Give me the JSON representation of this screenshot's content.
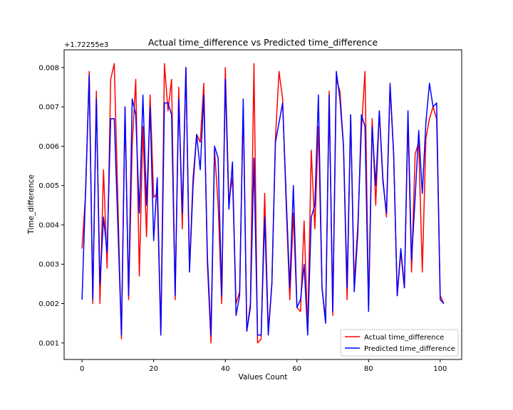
{
  "chart_data": {
    "type": "line",
    "title": "Actual time_difference vs Predicted time_difference",
    "xlabel": "Values Count",
    "ylabel": "Time_difference",
    "y_offset_label": "+1.72255e3",
    "xlim": [
      -5,
      106
    ],
    "ylim": [
      0.00058,
      0.00845
    ],
    "x_ticks": [
      0,
      20,
      40,
      60,
      80,
      100
    ],
    "y_ticks": [
      0.001,
      0.002,
      0.003,
      0.004,
      0.005,
      0.006,
      0.007,
      0.008
    ],
    "x_tick_labels": [
      "0",
      "20",
      "40",
      "60",
      "80",
      "100"
    ],
    "y_tick_labels": [
      "0.001",
      "0.002",
      "0.003",
      "0.004",
      "0.005",
      "0.006",
      "0.007",
      "0.008"
    ],
    "grid": false,
    "legend_position": "lower right",
    "series": [
      {
        "name": "Actual time_difference",
        "color": "#ff0000",
        "values": [
          0.0034,
          0.0048,
          0.0079,
          0.002,
          0.0074,
          0.002,
          0.0054,
          0.0029,
          0.0077,
          0.0081,
          0.0046,
          0.0011,
          0.007,
          0.0021,
          0.006,
          0.0077,
          0.0027,
          0.0065,
          0.0037,
          0.0073,
          0.0047,
          0.0048,
          0.0012,
          0.0081,
          0.0069,
          0.0077,
          0.0021,
          0.0075,
          0.0039,
          0.008,
          0.0029,
          0.0052,
          0.0063,
          0.0061,
          0.0076,
          0.003,
          0.001,
          0.0059,
          0.0045,
          0.002,
          0.008,
          0.0046,
          0.0052,
          0.002,
          0.0023,
          0.007,
          0.0013,
          0.002,
          0.0081,
          0.001,
          0.0011,
          0.0048,
          0.0013,
          0.0025,
          0.0062,
          0.0079,
          0.0072,
          0.0045,
          0.0021,
          0.0043,
          0.0019,
          0.0018,
          0.0041,
          0.0013,
          0.0059,
          0.0039,
          0.0065,
          0.0024,
          0.0016,
          0.0074,
          0.0017,
          0.0077,
          0.0074,
          0.006,
          0.0021,
          0.0068,
          0.0025,
          0.004,
          0.0064,
          0.0079,
          0.0019,
          0.0067,
          0.0045,
          0.0069,
          0.0052,
          0.0042,
          0.0075,
          0.0058,
          0.0022,
          0.0033,
          0.0024,
          0.0067,
          0.0028,
          0.0058,
          0.0061,
          0.0028,
          0.0062,
          0.0067,
          0.007,
          0.0067,
          0.0022,
          0.002
        ]
      },
      {
        "name": "Predicted time_difference",
        "color": "#0000ff",
        "values": [
          0.0021,
          0.0049,
          0.0078,
          0.0021,
          0.0072,
          0.0025,
          0.0042,
          0.0033,
          0.0067,
          0.0067,
          0.004,
          0.0012,
          0.007,
          0.0022,
          0.0072,
          0.0068,
          0.0043,
          0.0073,
          0.0045,
          0.007,
          0.0036,
          0.0052,
          0.0012,
          0.0071,
          0.0071,
          0.0068,
          0.0022,
          0.0072,
          0.0043,
          0.008,
          0.0028,
          0.005,
          0.0063,
          0.0054,
          0.0073,
          0.0032,
          0.0012,
          0.006,
          0.0057,
          0.0022,
          0.0077,
          0.0044,
          0.0056,
          0.0017,
          0.0022,
          0.0072,
          0.0013,
          0.0019,
          0.0057,
          0.0012,
          0.0012,
          0.0042,
          0.0012,
          0.0025,
          0.0061,
          0.0066,
          0.0071,
          0.0047,
          0.0024,
          0.005,
          0.0019,
          0.0021,
          0.003,
          0.0012,
          0.0042,
          0.0045,
          0.0073,
          0.0024,
          0.0015,
          0.0073,
          0.0018,
          0.0079,
          0.0072,
          0.006,
          0.0024,
          0.0068,
          0.0023,
          0.0038,
          0.0068,
          0.0065,
          0.0018,
          0.0065,
          0.005,
          0.0069,
          0.0051,
          0.0043,
          0.0076,
          0.0058,
          0.0022,
          0.0034,
          0.0024,
          0.0069,
          0.0031,
          0.0047,
          0.0064,
          0.0048,
          0.0066,
          0.0076,
          0.007,
          0.0071,
          0.0021,
          0.002
        ]
      }
    ]
  }
}
